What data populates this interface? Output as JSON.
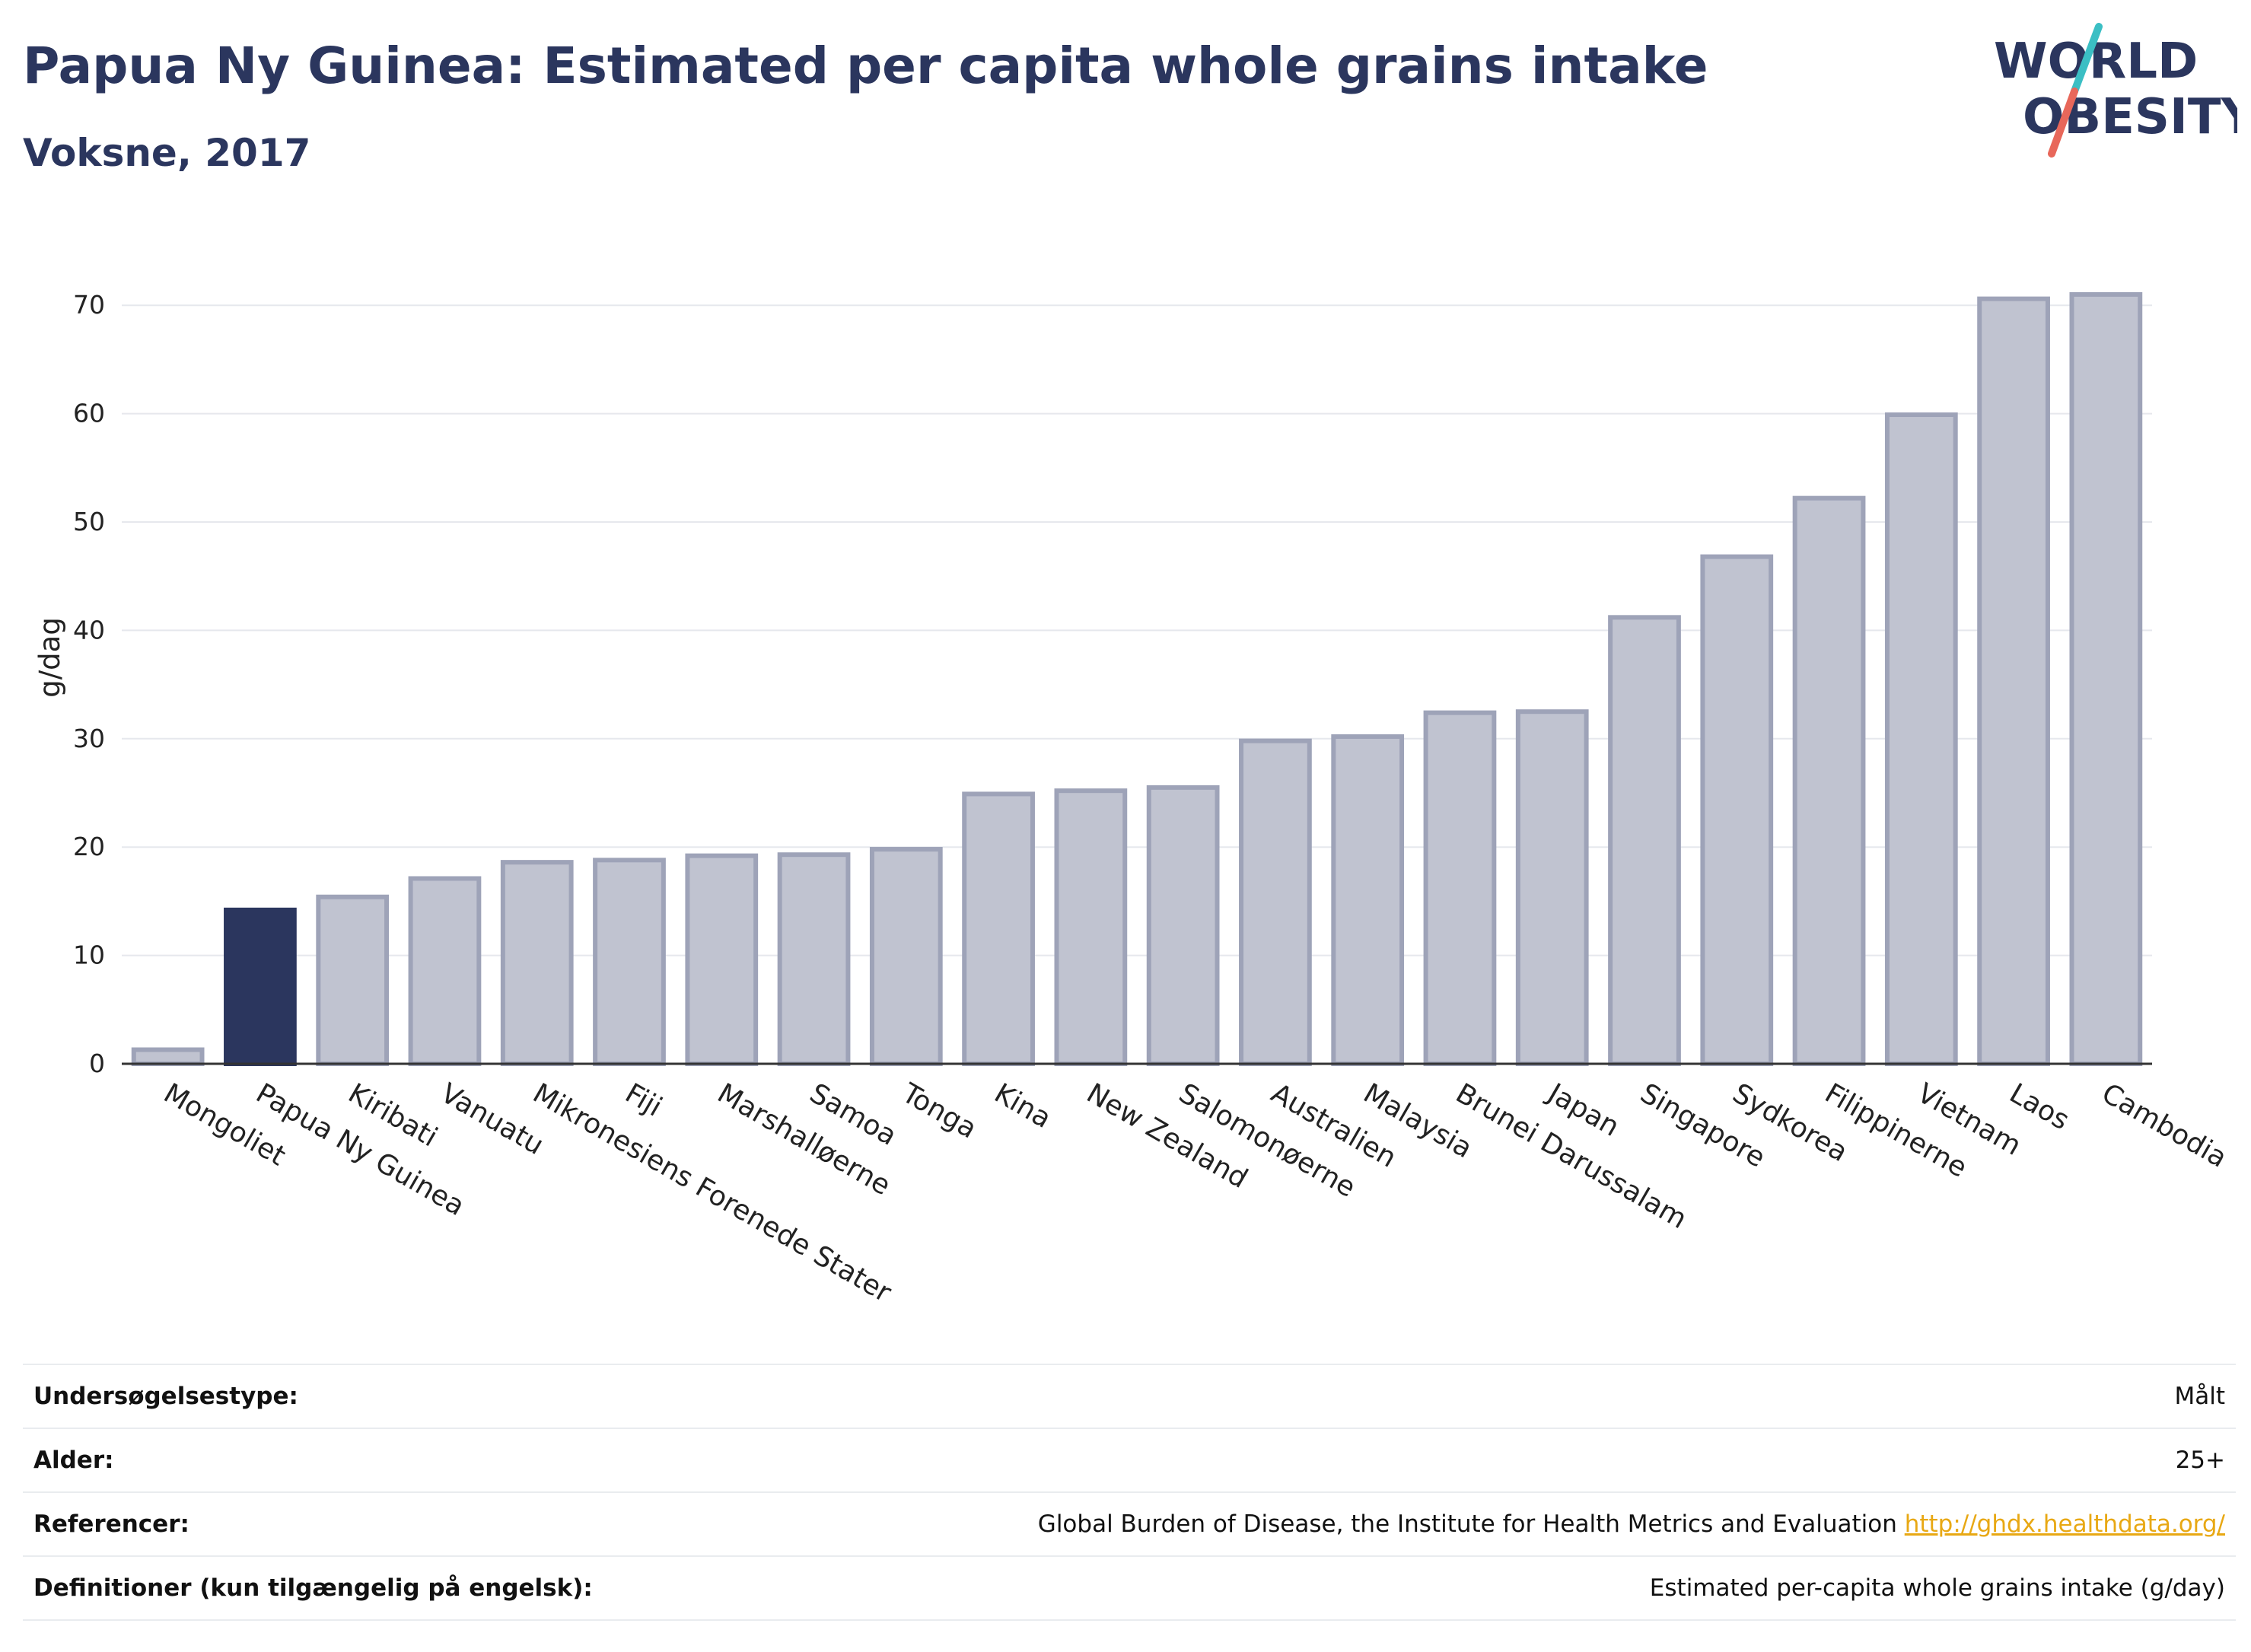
{
  "header": {
    "title": "Papua Ny Guinea: Estimated per capita whole grains intake",
    "subtitle": "Voksne, 2017"
  },
  "logo": {
    "line1": "WORLD",
    "line2": "OBESITY",
    "colors": {
      "text": "#2b365e",
      "slash_top": "#3bbfc4",
      "slash_bottom": "#e8675a"
    }
  },
  "chart_data": {
    "type": "bar",
    "ylabel": "g/dag",
    "ylim": [
      0,
      75
    ],
    "yticks": [
      0,
      10,
      20,
      30,
      40,
      50,
      60,
      70
    ],
    "grid": true,
    "highlight_color": "#2b365e",
    "bar_color": "#c0c3d0",
    "bar_edge_color": "#9ea3b8",
    "categories": [
      "Mongoliet",
      "Papua Ny Guinea",
      "Kiribati",
      "Vanuatu",
      "Mikronesiens Forenede Stater",
      "Fiji",
      "Marshalløerne",
      "Samoa",
      "Tonga",
      "Kina",
      "New Zealand",
      "Salomonøerne",
      "Australien",
      "Malaysia",
      "Brunei Darussalam",
      "Japan",
      "Singapore",
      "Sydkorea",
      "Filippinerne",
      "Vietnam",
      "Laos",
      "Cambodia"
    ],
    "values": [
      1.3,
      14.2,
      15.4,
      17.1,
      18.6,
      18.8,
      19.2,
      19.3,
      19.8,
      24.9,
      25.2,
      25.5,
      29.8,
      30.2,
      32.4,
      32.5,
      41.2,
      46.8,
      52.2,
      59.9,
      70.6,
      71.0
    ],
    "highlight": "Papua Ny Guinea"
  },
  "info": [
    {
      "key": "Undersøgelsestype:",
      "value": "Målt"
    },
    {
      "key": "Alder:",
      "value": "25+"
    },
    {
      "key": "Referencer:",
      "value": "Global Burden of Disease, the Institute for Health Metrics and Evaluation",
      "link": "http://ghdx.healthdata.org/"
    },
    {
      "key": "Definitioner (kun tilgængelig på engelsk):",
      "value": "Estimated per-capita whole grains intake (g/day)"
    }
  ]
}
